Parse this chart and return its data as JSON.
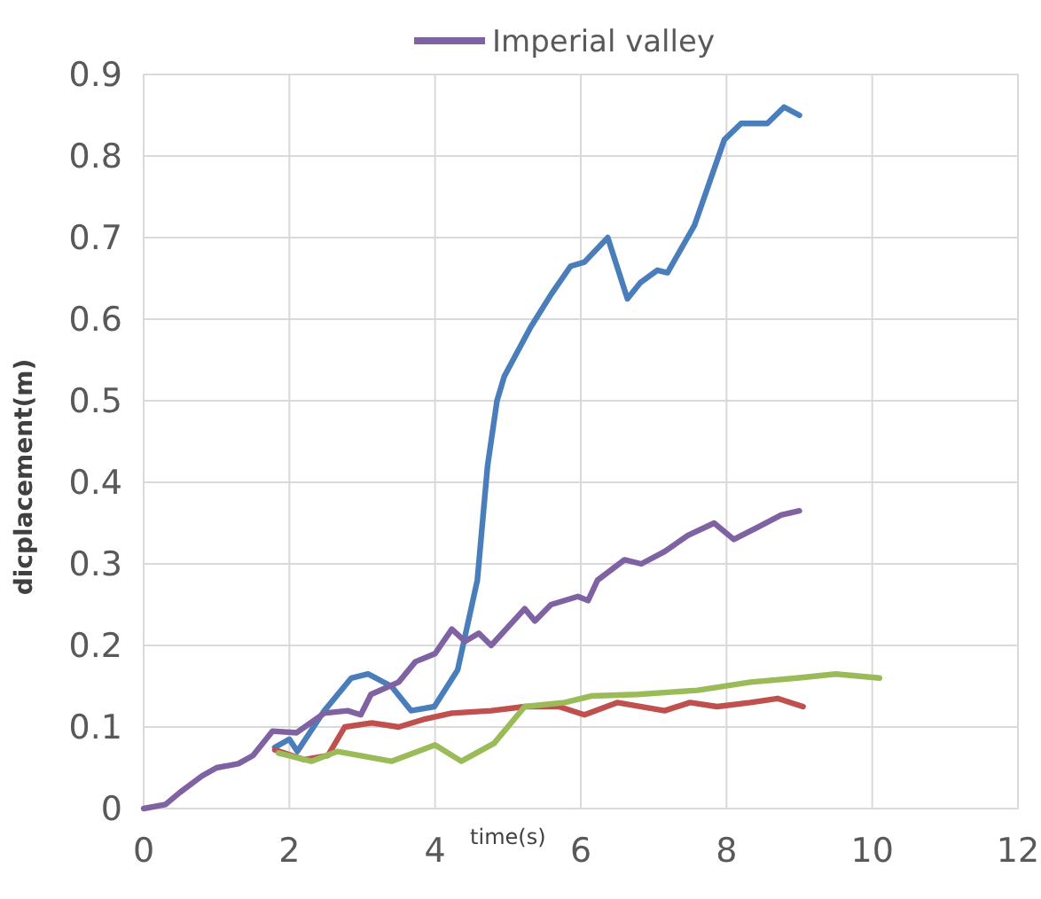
{
  "chart_data": {
    "type": "line",
    "xlabel": "time(s)",
    "ylabel": "dicplacement(m)",
    "xlim": [
      0,
      12
    ],
    "xticks": [
      0,
      2,
      4,
      6,
      8,
      10,
      12
    ],
    "ylim": [
      0,
      0.9
    ],
    "yticks": [
      0,
      0.1,
      0.2,
      0.3,
      0.4,
      0.5,
      0.6,
      0.7,
      0.8,
      0.9
    ],
    "grid": true,
    "legend": "top",
    "line_style": "solid",
    "marker": "none",
    "series": [
      {
        "color": "#4a7ebb",
        "x": [
          1.8,
          2.0,
          2.11,
          2.48,
          2.85,
          3.08,
          3.4,
          3.67,
          3.99,
          4.31,
          4.58,
          4.72,
          4.85,
          4.95,
          5.31,
          5.59,
          5.86,
          6.05,
          6.37,
          6.64,
          6.82,
          7.05,
          7.19,
          7.56,
          7.97,
          8.2,
          8.56,
          8.79,
          9.0
        ],
        "values": [
          0.075,
          0.085,
          0.07,
          0.12,
          0.16,
          0.165,
          0.15,
          0.12,
          0.125,
          0.17,
          0.28,
          0.42,
          0.5,
          0.53,
          0.59,
          0.63,
          0.665,
          0.67,
          0.7,
          0.625,
          0.645,
          0.66,
          0.657,
          0.715,
          0.82,
          0.84,
          0.84,
          0.86,
          0.85
        ]
      },
      {
        "color": "#c0504d",
        "x": [
          1.8,
          2.2,
          2.53,
          2.76,
          3.13,
          3.5,
          3.87,
          4.23,
          4.77,
          5.23,
          5.7,
          6.05,
          6.5,
          7.15,
          7.5,
          7.87,
          8.33,
          8.7,
          9.05
        ],
        "values": [
          0.072,
          0.06,
          0.065,
          0.1,
          0.105,
          0.1,
          0.11,
          0.117,
          0.12,
          0.125,
          0.125,
          0.115,
          0.13,
          0.12,
          0.13,
          0.125,
          0.13,
          0.135,
          0.125
        ]
      },
      {
        "color": "#9bbb59",
        "x": [
          1.85,
          2.3,
          2.66,
          3.4,
          4.0,
          4.36,
          4.81,
          5.23,
          5.78,
          6.14,
          6.78,
          7.6,
          8.33,
          8.97,
          9.5,
          10.1
        ],
        "values": [
          0.068,
          0.058,
          0.07,
          0.058,
          0.078,
          0.058,
          0.08,
          0.125,
          0.13,
          0.138,
          0.14,
          0.145,
          0.155,
          0.16,
          0.165,
          0.16
        ]
      },
      {
        "name": "Imperial valley",
        "color": "#7e62a1",
        "x": [
          0,
          0.3,
          0.5,
          0.8,
          1.0,
          1.3,
          1.5,
          1.77,
          2.1,
          2.48,
          2.8,
          2.98,
          3.12,
          3.5,
          3.73,
          4.0,
          4.23,
          4.41,
          4.6,
          4.77,
          5.23,
          5.37,
          5.59,
          5.96,
          6.1,
          6.23,
          6.6,
          6.83,
          7.15,
          7.47,
          7.83,
          8.1,
          8.43,
          8.75,
          9.0
        ],
        "values": [
          0,
          0.005,
          0.02,
          0.04,
          0.05,
          0.055,
          0.065,
          0.095,
          0.093,
          0.117,
          0.12,
          0.115,
          0.14,
          0.155,
          0.18,
          0.19,
          0.22,
          0.205,
          0.215,
          0.2,
          0.245,
          0.23,
          0.25,
          0.26,
          0.255,
          0.28,
          0.305,
          0.3,
          0.315,
          0.335,
          0.35,
          0.33,
          0.345,
          0.36,
          0.365
        ]
      }
    ]
  }
}
